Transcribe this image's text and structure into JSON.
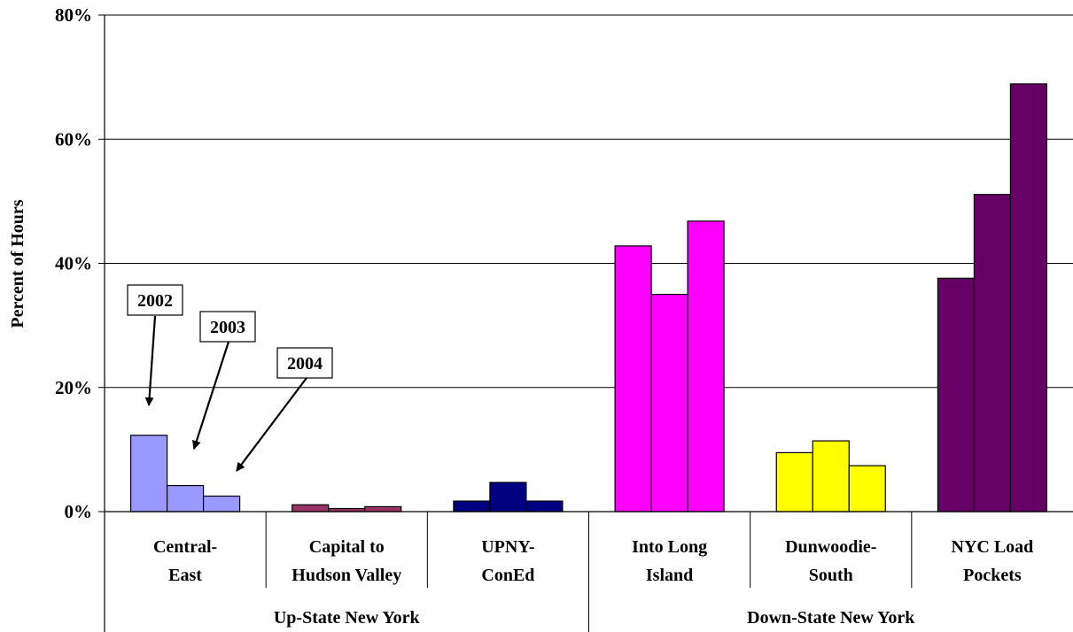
{
  "chart_data": {
    "type": "bar",
    "ylabel": "Percent of Hours",
    "ylim": [
      0,
      80
    ],
    "yticks": [
      "0%",
      "20%",
      "40%",
      "60%",
      "80%"
    ],
    "grid": true,
    "legend": "none",
    "categories": [
      {
        "line1": "Central-",
        "line2": "East",
        "color": "#9999ff",
        "values": [
          12.3,
          4.2,
          2.5
        ]
      },
      {
        "line1": "Capital to",
        "line2": "Hudson Valley",
        "color": "#993366",
        "values": [
          1.1,
          0.5,
          0.8
        ]
      },
      {
        "line1": "UPNY-",
        "line2": "ConEd",
        "color": "#000080",
        "values": [
          1.7,
          4.7,
          1.7
        ]
      },
      {
        "line1": "Into Long",
        "line2": "Island",
        "color": "#ff00ff",
        "values": [
          42.8,
          35.0,
          46.8
        ]
      },
      {
        "line1": "Dunwoodie-",
        "line2": "South",
        "color": "#ffff00",
        "values": [
          9.5,
          11.4,
          7.4
        ]
      },
      {
        "line1": "NYC Load",
        "line2": "Pockets",
        "color": "#660066",
        "values": [
          37.6,
          51.1,
          68.9
        ]
      }
    ],
    "years": [
      "2002",
      "2003",
      "2004"
    ],
    "groups": [
      "Up-State New York",
      "Down-State New York"
    ]
  }
}
